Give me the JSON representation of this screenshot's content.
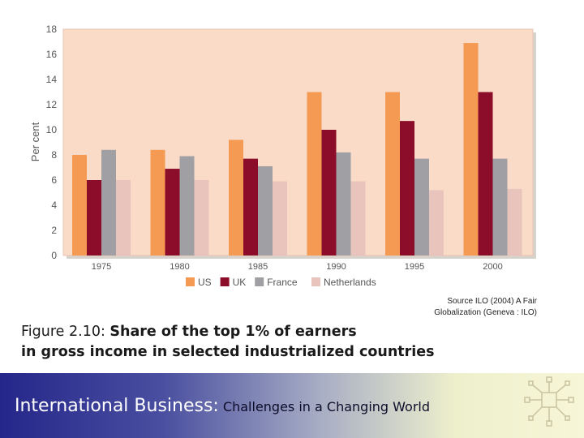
{
  "chart_data": {
    "type": "bar",
    "categories": [
      "1975",
      "1980",
      "1985",
      "1990",
      "1995",
      "2000"
    ],
    "series": [
      {
        "name": "US",
        "color": "#f59a52",
        "values": [
          8.0,
          8.4,
          9.2,
          13.0,
          13.0,
          16.9
        ]
      },
      {
        "name": "UK",
        "color": "#8b0d2a",
        "values": [
          6.0,
          6.9,
          7.7,
          10.0,
          10.7,
          13.0
        ]
      },
      {
        "name": "France",
        "color": "#a0a0a4",
        "values": [
          8.4,
          7.9,
          7.1,
          8.2,
          7.7,
          7.7
        ]
      },
      {
        "name": "Netherlands",
        "color": "#e9c4bc",
        "values": [
          6.0,
          6.0,
          5.9,
          5.9,
          5.2,
          5.3
        ]
      }
    ],
    "ylabel": "Per cent",
    "ylim": [
      0,
      18
    ],
    "yticks": [
      0,
      2,
      4,
      6,
      8,
      10,
      12,
      14,
      16,
      18
    ],
    "grid": false,
    "legend": "bottom",
    "plot_background": "#f9dbc8"
  },
  "source_lines": [
    "Source ILO (2004) A Fair",
    "Globalization (Geneva : ILO)"
  ],
  "caption": {
    "prefix": "Figure 2.10: ",
    "line1": "Share of the top 1% of earners",
    "line2": "in gross income in selected industrialized countries"
  },
  "footer": {
    "title": "International Business",
    "separator": ":",
    "subtitle": " Challenges in a Changing World"
  }
}
